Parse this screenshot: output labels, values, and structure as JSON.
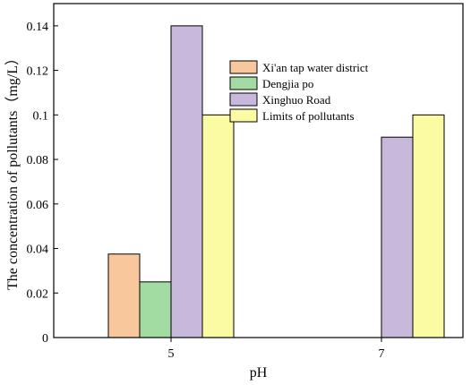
{
  "chart_data": {
    "type": "bar",
    "categories": [
      "5",
      "7"
    ],
    "series": [
      {
        "name": "Xi'an tap water district",
        "values": [
          0.0375,
          null
        ],
        "color": "#f9c79c"
      },
      {
        "name": "Dengjia po",
        "values": [
          0.025,
          null
        ],
        "color": "#a3dca3"
      },
      {
        "name": "Xinghuo Road",
        "values": [
          0.14,
          0.09
        ],
        "color": "#c8b8dc"
      },
      {
        "name": "Limits of pollutants",
        "values": [
          0.1,
          0.1
        ],
        "color": "#fbfba3"
      }
    ],
    "xlabel": "pH",
    "ylabel": "The concentration of pollutants（mg/L）",
    "ylim": [
      0,
      0.15
    ],
    "yticks": [
      "0",
      "0.02",
      "0.04",
      "0.06",
      "0.08",
      "0.1",
      "0.12",
      "0.14"
    ],
    "xticks": [
      "5",
      "7"
    ],
    "legend_position": "upper-right",
    "grid": false
  }
}
